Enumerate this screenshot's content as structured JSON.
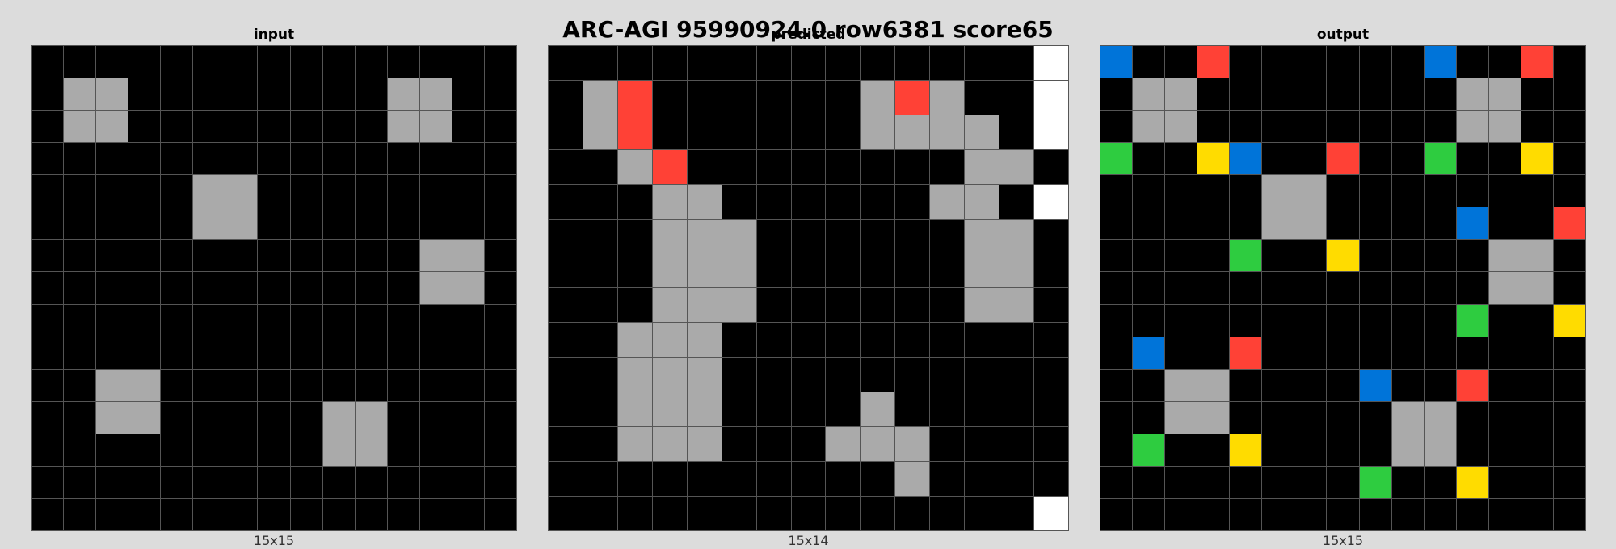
{
  "title": "ARC-AGI 95990924.0 row6381 score65",
  "palette": {
    "0": "#000000",
    "1": "#0074D9",
    "2": "#FF4136",
    "3": "#2ECC40",
    "4": "#FFDC00",
    "5": "#AAAAAA",
    "9": "#FFFFFF"
  },
  "panels": [
    {
      "label": "input",
      "size_label": "15x15",
      "rows": 15,
      "cols": 15,
      "grid": [
        [
          0,
          0,
          0,
          0,
          0,
          0,
          0,
          0,
          0,
          0,
          0,
          0,
          0,
          0,
          0
        ],
        [
          0,
          5,
          5,
          0,
          0,
          0,
          0,
          0,
          0,
          0,
          0,
          5,
          5,
          0,
          0
        ],
        [
          0,
          5,
          5,
          0,
          0,
          0,
          0,
          0,
          0,
          0,
          0,
          5,
          5,
          0,
          0
        ],
        [
          0,
          0,
          0,
          0,
          0,
          0,
          0,
          0,
          0,
          0,
          0,
          0,
          0,
          0,
          0
        ],
        [
          0,
          0,
          0,
          0,
          0,
          5,
          5,
          0,
          0,
          0,
          0,
          0,
          0,
          0,
          0
        ],
        [
          0,
          0,
          0,
          0,
          0,
          5,
          5,
          0,
          0,
          0,
          0,
          0,
          0,
          0,
          0
        ],
        [
          0,
          0,
          0,
          0,
          0,
          0,
          0,
          0,
          0,
          0,
          0,
          0,
          5,
          5,
          0
        ],
        [
          0,
          0,
          0,
          0,
          0,
          0,
          0,
          0,
          0,
          0,
          0,
          0,
          5,
          5,
          0
        ],
        [
          0,
          0,
          0,
          0,
          0,
          0,
          0,
          0,
          0,
          0,
          0,
          0,
          0,
          0,
          0
        ],
        [
          0,
          0,
          0,
          0,
          0,
          0,
          0,
          0,
          0,
          0,
          0,
          0,
          0,
          0,
          0
        ],
        [
          0,
          0,
          5,
          5,
          0,
          0,
          0,
          0,
          0,
          0,
          0,
          0,
          0,
          0,
          0
        ],
        [
          0,
          0,
          5,
          5,
          0,
          0,
          0,
          0,
          0,
          5,
          5,
          0,
          0,
          0,
          0
        ],
        [
          0,
          0,
          0,
          0,
          0,
          0,
          0,
          0,
          0,
          5,
          5,
          0,
          0,
          0,
          0
        ],
        [
          0,
          0,
          0,
          0,
          0,
          0,
          0,
          0,
          0,
          0,
          0,
          0,
          0,
          0,
          0
        ],
        [
          0,
          0,
          0,
          0,
          0,
          0,
          0,
          0,
          0,
          0,
          0,
          0,
          0,
          0,
          0
        ]
      ]
    },
    {
      "label": "predicted",
      "size_label": "15x14",
      "rows": 14,
      "cols": 15,
      "grid": [
        [
          0,
          0,
          0,
          0,
          0,
          0,
          0,
          0,
          0,
          0,
          0,
          0,
          0,
          0,
          9
        ],
        [
          0,
          5,
          2,
          0,
          0,
          0,
          0,
          0,
          0,
          5,
          2,
          5,
          0,
          0,
          9
        ],
        [
          0,
          5,
          2,
          0,
          0,
          0,
          0,
          0,
          0,
          5,
          5,
          5,
          5,
          0,
          9
        ],
        [
          0,
          0,
          5,
          2,
          0,
          0,
          0,
          0,
          0,
          0,
          0,
          0,
          5,
          5,
          0
        ],
        [
          0,
          0,
          0,
          5,
          5,
          0,
          0,
          0,
          0,
          0,
          0,
          5,
          5,
          0,
          9
        ],
        [
          0,
          0,
          0,
          5,
          5,
          5,
          0,
          0,
          0,
          0,
          0,
          0,
          5,
          5,
          0
        ],
        [
          0,
          0,
          0,
          5,
          5,
          5,
          0,
          0,
          0,
          0,
          0,
          0,
          5,
          5,
          0
        ],
        [
          0,
          0,
          0,
          5,
          5,
          5,
          0,
          0,
          0,
          0,
          0,
          0,
          5,
          5,
          0
        ],
        [
          0,
          0,
          5,
          5,
          5,
          0,
          0,
          0,
          0,
          0,
          0,
          0,
          0,
          0,
          0
        ],
        [
          0,
          0,
          5,
          5,
          5,
          0,
          0,
          0,
          0,
          0,
          0,
          0,
          0,
          0,
          0
        ],
        [
          0,
          0,
          5,
          5,
          5,
          0,
          0,
          0,
          0,
          5,
          0,
          0,
          0,
          0,
          0
        ],
        [
          0,
          0,
          5,
          5,
          5,
          0,
          0,
          0,
          5,
          5,
          5,
          0,
          0,
          0,
          0
        ],
        [
          0,
          0,
          0,
          0,
          0,
          0,
          0,
          0,
          0,
          0,
          5,
          0,
          0,
          0,
          0
        ],
        [
          0,
          0,
          0,
          0,
          0,
          0,
          0,
          0,
          0,
          0,
          0,
          0,
          0,
          0,
          9
        ]
      ]
    },
    {
      "label": "output",
      "size_label": "15x15",
      "rows": 15,
      "cols": 15,
      "grid": [
        [
          1,
          0,
          0,
          2,
          0,
          0,
          0,
          0,
          0,
          0,
          1,
          0,
          0,
          2,
          0
        ],
        [
          0,
          5,
          5,
          0,
          0,
          0,
          0,
          0,
          0,
          0,
          0,
          5,
          5,
          0,
          0
        ],
        [
          0,
          5,
          5,
          0,
          0,
          0,
          0,
          0,
          0,
          0,
          0,
          5,
          5,
          0,
          0
        ],
        [
          3,
          0,
          0,
          4,
          1,
          0,
          0,
          2,
          0,
          0,
          3,
          0,
          0,
          4,
          0
        ],
        [
          0,
          0,
          0,
          0,
          0,
          5,
          5,
          0,
          0,
          0,
          0,
          0,
          0,
          0,
          0
        ],
        [
          0,
          0,
          0,
          0,
          0,
          5,
          5,
          0,
          0,
          0,
          0,
          1,
          0,
          0,
          2
        ],
        [
          0,
          0,
          0,
          0,
          3,
          0,
          0,
          4,
          0,
          0,
          0,
          0,
          5,
          5,
          0
        ],
        [
          0,
          0,
          0,
          0,
          0,
          0,
          0,
          0,
          0,
          0,
          0,
          0,
          5,
          5,
          0
        ],
        [
          0,
          0,
          0,
          0,
          0,
          0,
          0,
          0,
          0,
          0,
          0,
          3,
          0,
          0,
          4
        ],
        [
          0,
          1,
          0,
          0,
          2,
          0,
          0,
          0,
          0,
          0,
          0,
          0,
          0,
          0,
          0
        ],
        [
          0,
          0,
          5,
          5,
          0,
          0,
          0,
          0,
          1,
          0,
          0,
          2,
          0,
          0,
          0
        ],
        [
          0,
          0,
          5,
          5,
          0,
          0,
          0,
          0,
          0,
          5,
          5,
          0,
          0,
          0,
          0
        ],
        [
          0,
          3,
          0,
          0,
          4,
          0,
          0,
          0,
          0,
          5,
          5,
          0,
          0,
          0,
          0
        ],
        [
          0,
          0,
          0,
          0,
          0,
          0,
          0,
          0,
          3,
          0,
          0,
          4,
          0,
          0,
          0
        ],
        [
          0,
          0,
          0,
          0,
          0,
          0,
          0,
          0,
          0,
          0,
          0,
          0,
          0,
          0,
          0
        ]
      ]
    }
  ]
}
